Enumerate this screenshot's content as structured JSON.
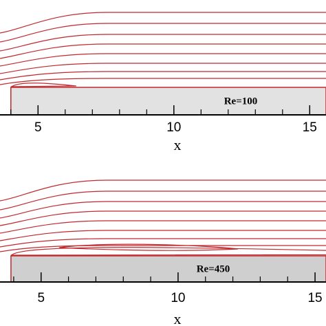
{
  "chart_data": [
    {
      "type": "streamline",
      "xlabel": "x",
      "annotation": "Re=100",
      "xlim": [
        3.6,
        15.6
      ],
      "xticks": [
        5,
        10,
        15
      ],
      "xminor": [
        4,
        6,
        7,
        8,
        9,
        11,
        12,
        13,
        14
      ],
      "color": "#c0282d"
    },
    {
      "type": "streamline",
      "xlabel": "x",
      "annotation": "Re=450",
      "xlim": [
        3.5,
        15.4
      ],
      "xticks": [
        5,
        10,
        15
      ],
      "xminor": [
        4,
        6,
        7,
        8,
        9,
        11,
        12,
        13,
        14
      ],
      "color": "#c0282d"
    }
  ]
}
